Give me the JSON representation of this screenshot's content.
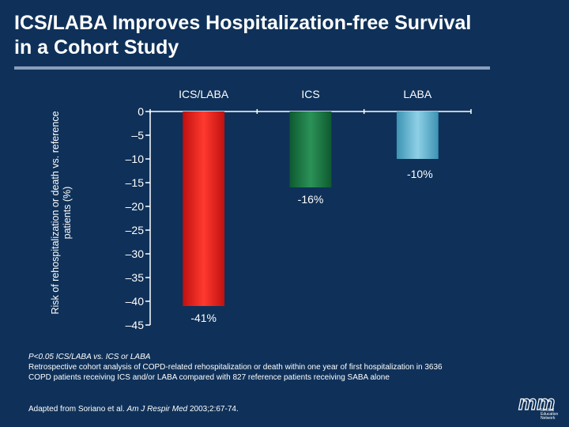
{
  "title": "ICS/LABA Improves Hospitalization-free Survival in a Cohort Study",
  "chart_data": {
    "type": "bar",
    "title": "",
    "ylabel": "Risk of rehospitalization or death vs. reference patients (%)",
    "xlabel": "",
    "categories": [
      "ICS/LABA",
      "ICS",
      "LABA"
    ],
    "values": [
      -41,
      -16,
      -10
    ],
    "data_labels": [
      "-41%",
      "-16%",
      "-10%"
    ],
    "ylim": [
      -45,
      0
    ],
    "yticks": [
      0,
      -5,
      -10,
      -15,
      -20,
      -25,
      -30,
      -35,
      -40,
      -45
    ],
    "ytick_labels": [
      "0",
      "–5",
      "–10",
      "–15",
      "–20",
      "–25",
      "–30",
      "–35",
      "–40",
      "–45"
    ],
    "category_axis_position": "top",
    "colors": [
      "#e81d1d",
      "#1d7a45",
      "#5fb3cf"
    ]
  },
  "footnotes": [
    "P<0.05 ICS/LABA vs. ICS or LABA",
    "Retrospective cohort analysis of COPD-related rehospitalization or death within one year of first hospitalization in 3636 COPD patients receiving ICS and/or LABA compared with 827 reference patients receiving SABA alone"
  ],
  "source": {
    "prefix": "Adapted from Soriano  et al.",
    "journal": "Am J Respir Med",
    "suffix": " 2003;2:67-74."
  },
  "logo": {
    "mark": "mm",
    "line1": "Medical",
    "line2": "Education",
    "line3": "Network"
  }
}
